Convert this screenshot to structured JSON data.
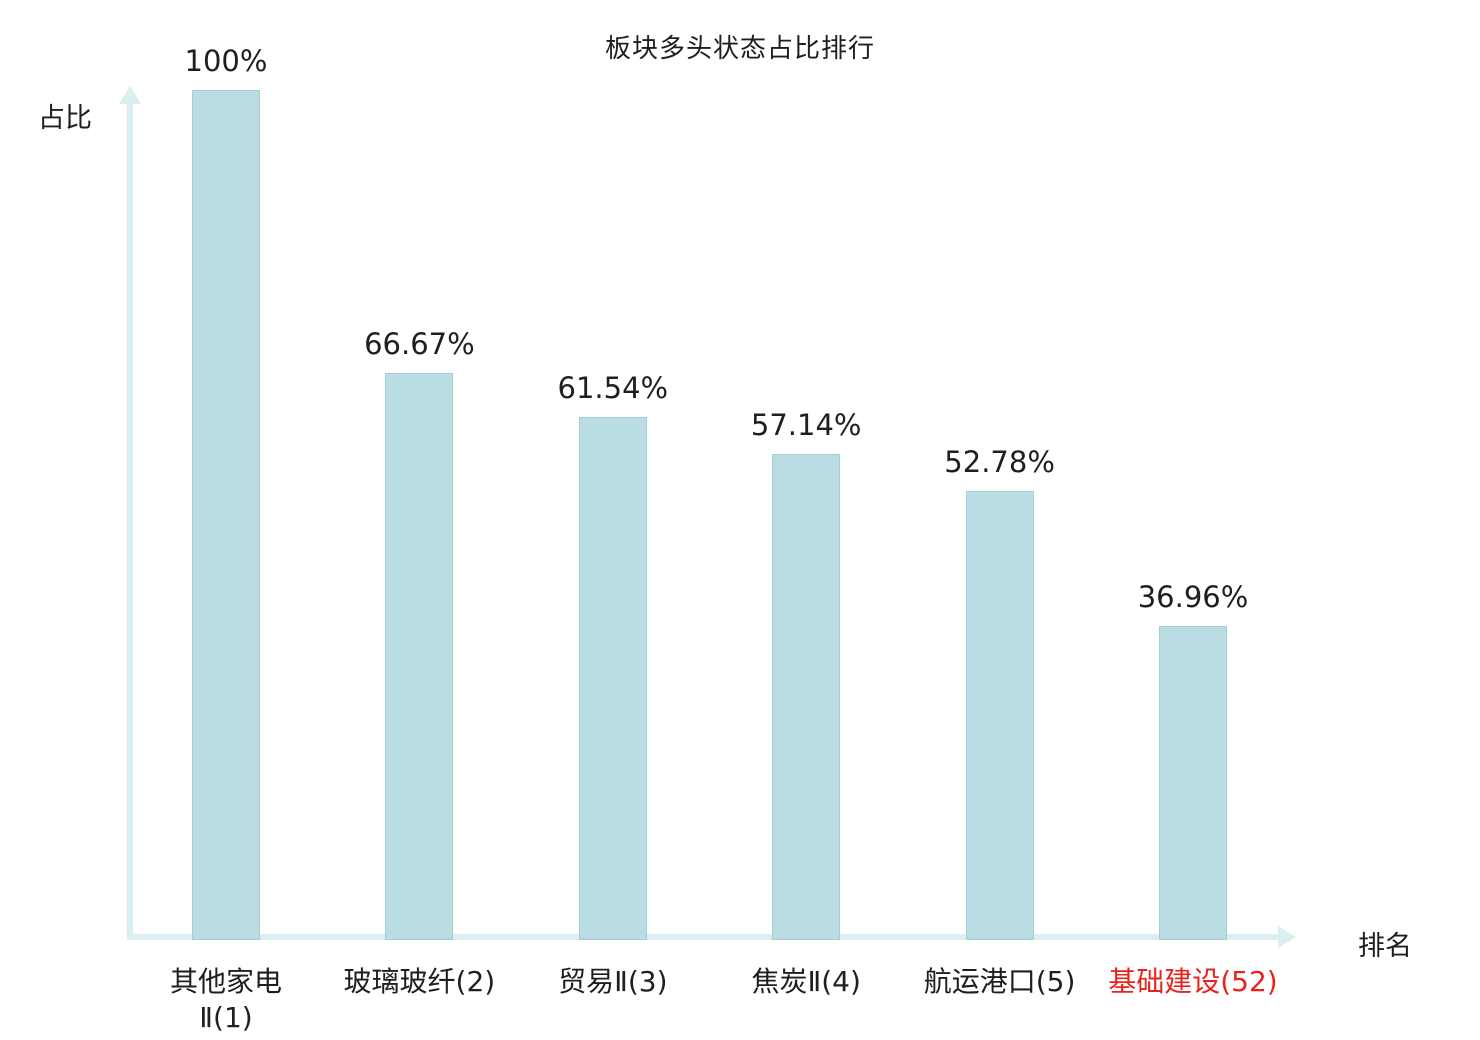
{
  "chart_data": {
    "type": "bar",
    "title": "板块多头状态占比排行",
    "xlabel": "排名",
    "ylabel": "占比",
    "ylim": [
      0,
      100
    ],
    "categories": [
      "其他家电\nⅡ(1)",
      "玻璃玻纤(2)",
      "贸易Ⅱ(3)",
      "焦炭Ⅱ(4)",
      "航运港口(5)",
      "基础建设(52)"
    ],
    "values": [
      100,
      66.67,
      61.54,
      57.14,
      52.78,
      36.96
    ],
    "value_labels": [
      "100%",
      "66.67%",
      "61.54%",
      "57.14%",
      "52.78%",
      "36.96%"
    ],
    "highlight_index": 5,
    "bar_color": "#b9dde2",
    "bar_border_color": "#a3ccd3",
    "axis_color": "#daeff0",
    "label_color": "#1f1f1f",
    "highlight_color": "#e8231d",
    "legend": "none",
    "grid": false
  }
}
